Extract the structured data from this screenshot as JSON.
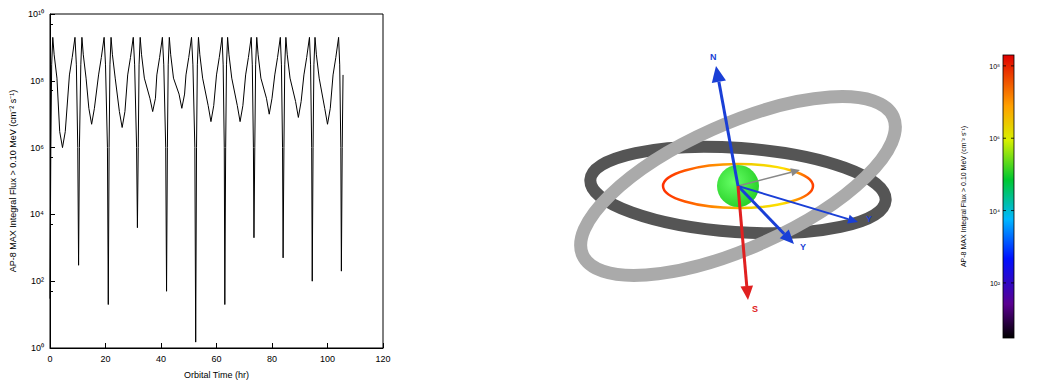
{
  "chart_data": {
    "type": "line",
    "x_label": "Orbital Time (hr)",
    "y_label": "AP-8 MAX Integral Flux > 0.10 MeV (cm⁻² s⁻¹)",
    "x": [
      0,
      0.3,
      0.6,
      1,
      1.5,
      2.5,
      3.5,
      4.5,
      5.5,
      7,
      8,
      9,
      9.5,
      10,
      10.3,
      10.6,
      11.1,
      11.5,
      12,
      13,
      14,
      15,
      16,
      17.5,
      18.5,
      19.5,
      20,
      20.7,
      21,
      21.3,
      21.6,
      22,
      22.5,
      23.5,
      25,
      26,
      27,
      28,
      29,
      30,
      30.5,
      31.2,
      31.5,
      31.8,
      32.1,
      32.5,
      33,
      34,
      36,
      37,
      38,
      38.5,
      39.5,
      40.5,
      41,
      41.7,
      42,
      42.3,
      42.6,
      43,
      43.5,
      44.5,
      46.5,
      47.5,
      48.5,
      49,
      50,
      51,
      51.5,
      52.2,
      52.5,
      52.8,
      53.1,
      53.5,
      54,
      55,
      57,
      58,
      59,
      60,
      61,
      62,
      62.4,
      62.8,
      63,
      63.3,
      63.6,
      64,
      64.5,
      65.5,
      67.5,
      68.5,
      69.5,
      70.5,
      71.5,
      72.5,
      72.9,
      73.3,
      73.5,
      73.8,
      74.1,
      74.5,
      75,
      76,
      78,
      79,
      80,
      81,
      82,
      83,
      83.4,
      83.8,
      84,
      84.3,
      84.6,
      85,
      85.5,
      86.5,
      88.5,
      89.5,
      90.5,
      91.5,
      92.5,
      93.5,
      93.9,
      94.3,
      94.5,
      94.8,
      95.1,
      95.5,
      96,
      97,
      99,
      100,
      101,
      102,
      103,
      104,
      104.4,
      104.8,
      105,
      105.3,
      105.6
    ],
    "values": [
      30,
      1000000.0,
      300000000.0,
      2000000000.0,
      600000000.0,
      120000000.0,
      3000000.0,
      1000000.0,
      3000000.0,
      150000000.0,
      500000000.0,
      2000000000.0,
      300000000.0,
      1000000.0,
      300,
      1000000.0,
      300000000.0,
      2000000000.0,
      600000000.0,
      120000000.0,
      15000000.0,
      5000000.0,
      15000000.0,
      150000000.0,
      500000000.0,
      2000000000.0,
      300000000.0,
      1000000.0,
      20,
      1000000.0,
      300000000.0,
      2000000000.0,
      600000000.0,
      120000000.0,
      12000000.0,
      4000000.0,
      12000000.0,
      150000000.0,
      500000000.0,
      2000000000.0,
      300000000.0,
      1000000.0,
      4000,
      1000000.0,
      300000000.0,
      2000000000.0,
      600000000.0,
      120000000.0,
      30000000.0,
      12000000.0,
      30000000.0,
      150000000.0,
      500000000.0,
      2000000000.0,
      300000000.0,
      1000000.0,
      50,
      1000000.0,
      300000000.0,
      2000000000.0,
      600000000.0,
      120000000.0,
      40000000.0,
      15000000.0,
      40000000.0,
      150000000.0,
      500000000.0,
      2000000000.0,
      300000000.0,
      1000000.0,
      1.5,
      1000000.0,
      300000000.0,
      2000000000.0,
      600000000.0,
      120000000.0,
      18000000.0,
      6000000.0,
      18000000.0,
      150000000.0,
      500000000.0,
      2000000000.0,
      300000000.0,
      1000000.0,
      20,
      1000000.0,
      300000000.0,
      2000000000.0,
      600000000.0,
      120000000.0,
      18000000.0,
      6000000.0,
      18000000.0,
      150000000.0,
      500000000.0,
      2000000000.0,
      300000000.0,
      1000000.0,
      2000,
      1000000.0,
      300000000.0,
      2000000000.0,
      600000000.0,
      120000000.0,
      30000000.0,
      10000000.0,
      30000000.0,
      150000000.0,
      500000000.0,
      2000000000.0,
      300000000.0,
      1000000.0,
      500,
      1000000.0,
      300000000.0,
      2000000000.0,
      600000000.0,
      120000000.0,
      24000000.0,
      8000000.0,
      24000000.0,
      150000000.0,
      500000000.0,
      2000000000.0,
      300000000.0,
      1000000.0,
      100,
      1000000.0,
      300000000.0,
      2000000000.0,
      600000000.0,
      120000000.0,
      15000000.0,
      5000000.0,
      15000000.0,
      150000000.0,
      500000000.0,
      2000000000.0,
      300000000.0,
      1000000.0,
      200,
      1000000.0,
      150000000.0
    ],
    "color": "#000000",
    "xlim": [
      0,
      120
    ],
    "xticks": [
      0,
      20,
      40,
      60,
      80,
      100,
      120
    ],
    "ylim": [
      1,
      10000000000
    ],
    "yticks": [
      {
        "value": 1,
        "label": "10⁰"
      },
      {
        "value": 100,
        "label": "10²"
      },
      {
        "value": 10000,
        "label": "10⁴"
      },
      {
        "value": 1000000,
        "label": "10⁶"
      },
      {
        "value": 100000000,
        "label": "10⁸"
      },
      {
        "value": 10000000000,
        "label": "10¹⁰"
      }
    ],
    "log": "y",
    "grid": false
  },
  "diagram": {
    "labels": [
      "N",
      "Y",
      "Y",
      "S"
    ]
  },
  "colorbar": {
    "label": "AP-8 MAX Integral Flux > 0.10 MeV (cm⁻² s⁻¹)",
    "range": [
      3,
      200000000
    ],
    "ticks": [
      {
        "value": 100,
        "label": "10²"
      },
      {
        "value": 10000,
        "label": "10⁴"
      },
      {
        "value": 1000000,
        "label": "10⁶"
      },
      {
        "value": 100000000,
        "label": "10⁸"
      }
    ]
  }
}
